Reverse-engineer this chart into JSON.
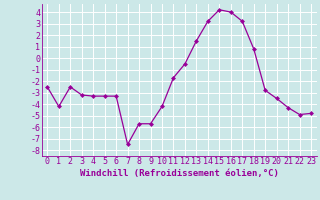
{
  "x": [
    0,
    1,
    2,
    3,
    4,
    5,
    6,
    7,
    8,
    9,
    10,
    11,
    12,
    13,
    14,
    15,
    16,
    17,
    18,
    19,
    20,
    21,
    22,
    23
  ],
  "y": [
    -2.5,
    -4.2,
    -2.5,
    -3.2,
    -3.3,
    -3.3,
    -3.3,
    -7.5,
    -5.7,
    -5.7,
    -4.2,
    -1.7,
    -0.5,
    1.5,
    3.2,
    4.2,
    4.0,
    3.2,
    0.8,
    -2.8,
    -3.5,
    -4.3,
    -4.9,
    -4.8
  ],
  "line_color": "#990099",
  "marker": "D",
  "marker_size": 2,
  "bg_color": "#cce8e8",
  "grid_color": "#ffffff",
  "xlabel": "Windchill (Refroidissement éolien,°C)",
  "xlabel_fontsize": 6.5,
  "tick_color": "#990099",
  "tick_fontsize": 6,
  "ylim": [
    -8.5,
    4.7
  ],
  "yticks": [
    -8,
    -7,
    -6,
    -5,
    -4,
    -3,
    -2,
    -1,
    0,
    1,
    2,
    3,
    4
  ],
  "xlim": [
    -0.5,
    23.5
  ],
  "xticks": [
    0,
    1,
    2,
    3,
    4,
    5,
    6,
    7,
    8,
    9,
    10,
    11,
    12,
    13,
    14,
    15,
    16,
    17,
    18,
    19,
    20,
    21,
    22,
    23
  ]
}
